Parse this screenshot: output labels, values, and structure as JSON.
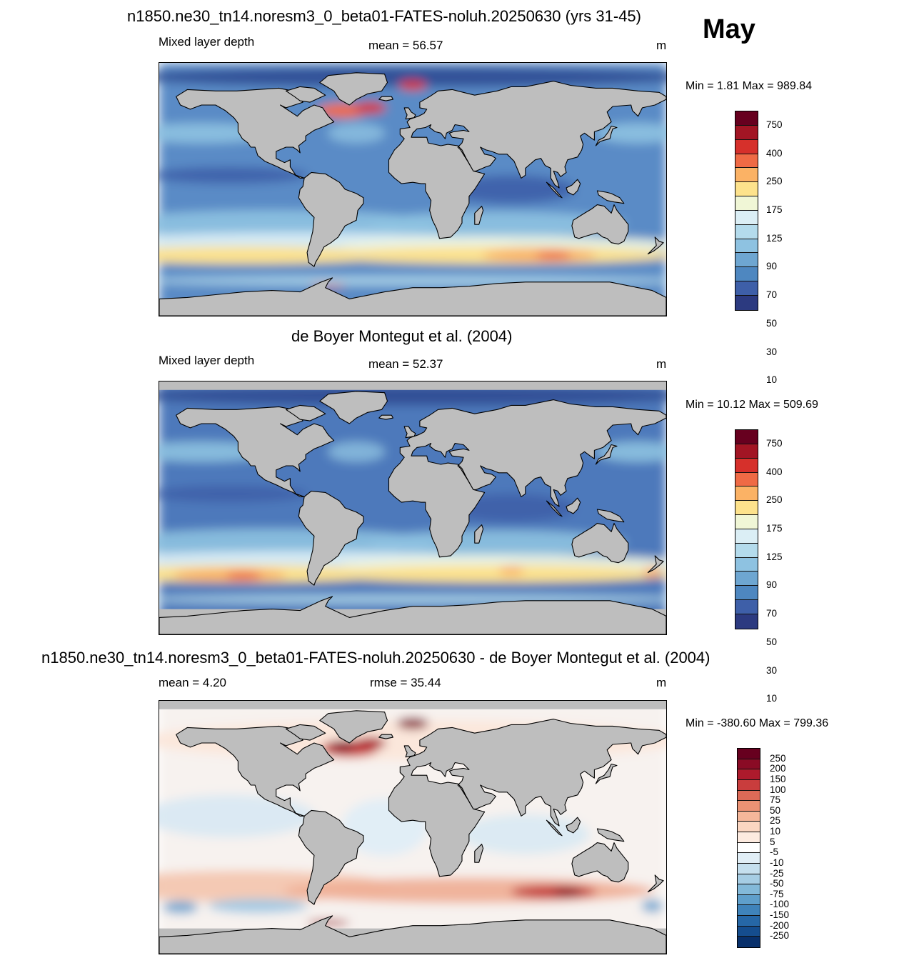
{
  "header": {
    "title": "n1850.ne30_tn14.noresm3_0_beta01-FATES-noluh.20250630 (yrs 31-45)",
    "month": "May"
  },
  "panels": [
    {
      "label_left": "Mixed layer depth",
      "stat": "mean =  56.57",
      "units": "m",
      "minmax": "Min =   1.81 Max = 989.84",
      "style": "model",
      "colorbar": {
        "labels": [
          "750",
          "400",
          "250",
          "175",
          "125",
          "90",
          "70",
          "50",
          "30",
          "10"
        ],
        "colors": [
          "#67001f",
          "#a21524",
          "#d6302b",
          "#ef6a45",
          "#fbb265",
          "#fde28c",
          "#f0f6d6",
          "#dbeef5",
          "#b4dbec",
          "#8ec2e1",
          "#6ea6d1",
          "#4e87c0",
          "#3e5fa8",
          "#2c3a80"
        ]
      }
    },
    {
      "title": "de Boyer Montegut et al. (2004)",
      "label_left": "Mixed layer depth",
      "stat": "mean =  52.37",
      "units": "m",
      "minmax": "Min =  10.12 Max = 509.69",
      "style": "obs",
      "colorbar": {
        "labels": [
          "750",
          "400",
          "250",
          "175",
          "125",
          "90",
          "70",
          "50",
          "30",
          "10"
        ],
        "colors": [
          "#67001f",
          "#a21524",
          "#d6302b",
          "#ef6a45",
          "#fbb265",
          "#fde28c",
          "#f0f6d6",
          "#dbeef5",
          "#b4dbec",
          "#8ec2e1",
          "#6ea6d1",
          "#4e87c0",
          "#3e5fa8",
          "#2c3a80"
        ]
      }
    },
    {
      "title": "n1850.ne30_tn14.noresm3_0_beta01-FATES-noluh.20250630 - de Boyer Montegut et al. (2004)",
      "label_left": "mean =   4.20",
      "stat": "rmse =  35.44",
      "units": "m",
      "minmax": "Min = -380.60 Max = 799.36",
      "style": "diff",
      "colorbar": {
        "labels": [
          "250",
          "200",
          "150",
          "100",
          "75",
          "50",
          "25",
          "10",
          "5",
          "-5",
          "-10",
          "-25",
          "-50",
          "-75",
          "-100",
          "-150",
          "-200",
          "-250"
        ],
        "colors": [
          "#67001f",
          "#8a0b25",
          "#ad1a2c",
          "#c93d3d",
          "#dc6a57",
          "#eb9274",
          "#f5b79a",
          "#fbd6c1",
          "#fdebe0",
          "#ffffff",
          "#e1eef6",
          "#c5dfee",
          "#a6cde4",
          "#83b9d9",
          "#5f9fcb",
          "#3f83ba",
          "#2667a6",
          "#154d8e",
          "#08306b"
        ]
      }
    }
  ]
}
